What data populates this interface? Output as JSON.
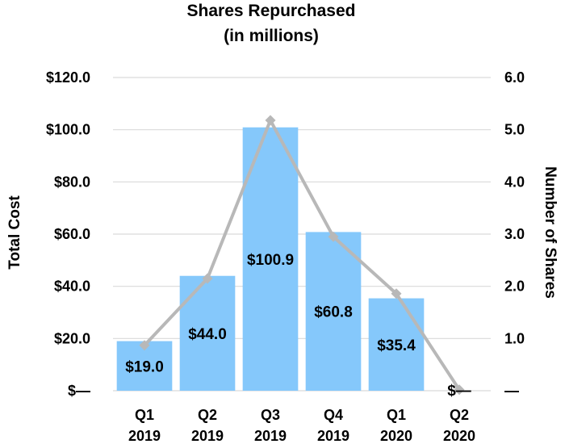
{
  "chart_data": {
    "type": "bar",
    "title": [
      "Shares Repurchased",
      "(in millions)"
    ],
    "categories": [
      [
        "Q1",
        "2019"
      ],
      [
        "Q2",
        "2019"
      ],
      [
        "Q3",
        "2019"
      ],
      [
        "Q4",
        "2019"
      ],
      [
        "Q1",
        "2020"
      ],
      [
        "Q2",
        "2020"
      ]
    ],
    "series": [
      {
        "name": "Total Cost",
        "type": "bar",
        "axis": "left",
        "values": [
          19.0,
          44.0,
          100.9,
          60.8,
          35.4,
          0
        ],
        "labels": [
          "$19.0",
          "$44.0",
          "$100.9",
          "$60.8",
          "$35.4",
          "$—"
        ]
      },
      {
        "name": "Number of Shares",
        "type": "line",
        "axis": "right",
        "values": [
          0.87,
          2.15,
          5.18,
          2.95,
          1.86,
          0.02
        ]
      }
    ],
    "ylabel_left": "Total Cost",
    "ylabel_right": "Number of Shares",
    "ylim_left": [
      0,
      120
    ],
    "ylim_right": [
      0,
      6
    ],
    "yticks_left": [
      "$—",
      "$20.0",
      "$40.0",
      "$60.0",
      "$80.0",
      "$100.0",
      "$120.0"
    ],
    "yticks_right": [
      "—",
      "1.0",
      "2.0",
      "3.0",
      "4.0",
      "5.0",
      "6.0"
    ],
    "colors": {
      "bar": "#85c8fb",
      "line": "#b8b8b8",
      "grid": "#d9d9d9"
    },
    "grid": true
  }
}
